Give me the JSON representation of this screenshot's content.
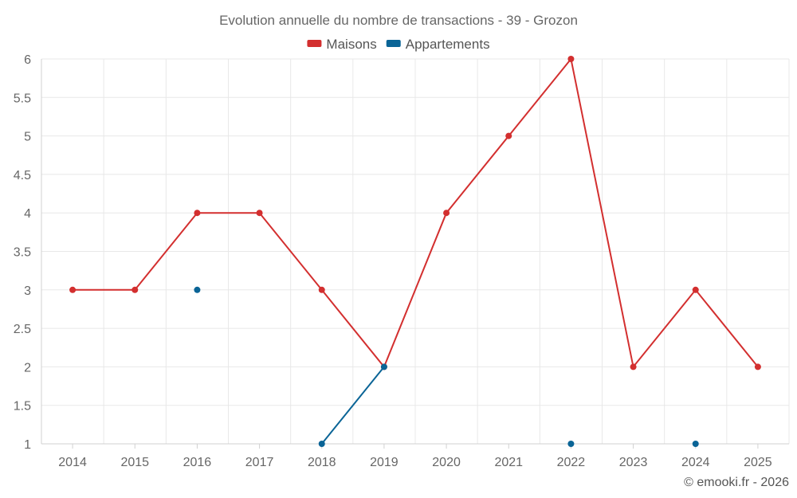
{
  "chart_data": {
    "type": "line",
    "title": "Evolution annuelle du nombre de transactions - 39 - Grozon",
    "categories": [
      "2014",
      "2015",
      "2016",
      "2017",
      "2018",
      "2019",
      "2020",
      "2021",
      "2022",
      "2023",
      "2024",
      "2025"
    ],
    "ylim": [
      1,
      6
    ],
    "yticks": [
      1,
      1.5,
      2,
      2.5,
      3,
      3.5,
      4,
      4.5,
      5,
      5.5,
      6
    ],
    "ytick_labels": [
      "1",
      "1.5",
      "2",
      "2.5",
      "3",
      "3.5",
      "4",
      "4.5",
      "5",
      "5.5",
      "6"
    ],
    "grid": true,
    "legend_position": "top-center",
    "series": [
      {
        "name": "Maisons",
        "color": "#d32f2f",
        "values": [
          3,
          3,
          4,
          4,
          3,
          2,
          4,
          5,
          6,
          2,
          3,
          2
        ]
      },
      {
        "name": "Appartements",
        "color": "#0a6496",
        "values": [
          null,
          null,
          3,
          null,
          1,
          2,
          null,
          null,
          1,
          null,
          1,
          null
        ]
      }
    ]
  },
  "credit": "© emooki.fr - 2026"
}
